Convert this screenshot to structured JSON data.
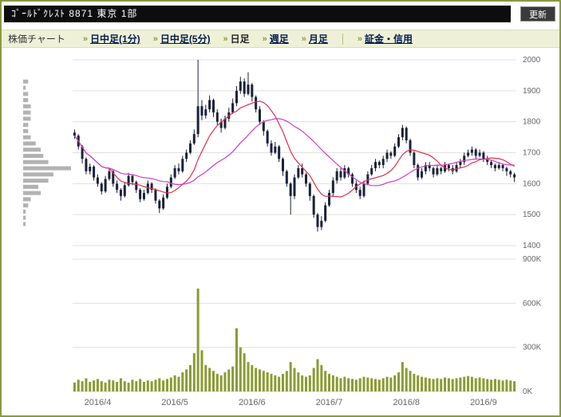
{
  "header": {
    "title": "ｺﾞｰﾙﾄﾞｸﾚｽﾄ 8871  東京 1部",
    "refresh_label": "更新"
  },
  "nav": {
    "label": "株価チャート",
    "arrow": "»",
    "items": [
      {
        "label": "日中足(1分)",
        "active": false
      },
      {
        "label": "日中足(5分)",
        "active": false
      },
      {
        "label": "日足",
        "active": true
      },
      {
        "label": "週足",
        "active": false
      },
      {
        "label": "月足",
        "active": false
      },
      {
        "label": "証金・信用",
        "active": false
      }
    ]
  },
  "chart_data": {
    "type": "candlestick+volume",
    "title": "",
    "xlabel": "",
    "ylabel": "",
    "grid": true,
    "legend": "none",
    "price_axis": {
      "side": "right",
      "min": 1400,
      "max": 2000,
      "ticks": [
        2000,
        1900,
        1800,
        1700,
        1600,
        1500,
        1400
      ]
    },
    "volume_axis": {
      "side": "right",
      "max_k": 900,
      "ticks": [
        {
          "value_k": 900,
          "label": "900K"
        },
        {
          "value_k": 600,
          "label": "600K"
        },
        {
          "value_k": 300,
          "label": "300K"
        },
        {
          "value_k": 0,
          "label": "0K"
        }
      ]
    },
    "months": [
      {
        "label": "2016/4",
        "start_index": 0
      },
      {
        "label": "2016/5",
        "start_index": 20
      },
      {
        "label": "2016/6",
        "start_index": 40
      },
      {
        "label": "2016/7",
        "start_index": 60
      },
      {
        "label": "2016/8",
        "start_index": 80
      },
      {
        "label": "2016/9",
        "start_index": 100
      }
    ],
    "candles": [
      [
        1765,
        1775,
        1745,
        1755
      ],
      [
        1755,
        1760,
        1710,
        1720
      ],
      [
        1720,
        1725,
        1665,
        1680
      ],
      [
        1680,
        1685,
        1630,
        1640
      ],
      [
        1640,
        1665,
        1630,
        1655
      ],
      [
        1655,
        1660,
        1610,
        1620
      ],
      [
        1620,
        1630,
        1590,
        1600
      ],
      [
        1600,
        1605,
        1565,
        1575
      ],
      [
        1575,
        1625,
        1570,
        1615
      ],
      [
        1615,
        1650,
        1610,
        1640
      ],
      [
        1640,
        1645,
        1590,
        1600
      ],
      [
        1600,
        1610,
        1570,
        1580
      ],
      [
        1580,
        1585,
        1545,
        1560
      ],
      [
        1560,
        1605,
        1555,
        1595
      ],
      [
        1595,
        1635,
        1590,
        1625
      ],
      [
        1625,
        1630,
        1595,
        1605
      ],
      [
        1605,
        1610,
        1570,
        1580
      ],
      [
        1580,
        1585,
        1540,
        1550
      ],
      [
        1550,
        1580,
        1545,
        1570
      ],
      [
        1570,
        1610,
        1565,
        1600
      ],
      [
        1600,
        1605,
        1570,
        1580
      ],
      [
        1580,
        1585,
        1535,
        1545
      ],
      [
        1545,
        1550,
        1505,
        1520
      ],
      [
        1520,
        1565,
        1515,
        1555
      ],
      [
        1555,
        1600,
        1550,
        1590
      ],
      [
        1590,
        1630,
        1585,
        1620
      ],
      [
        1620,
        1660,
        1615,
        1650
      ],
      [
        1650,
        1665,
        1630,
        1640
      ],
      [
        1640,
        1690,
        1635,
        1680
      ],
      [
        1680,
        1710,
        1670,
        1700
      ],
      [
        1700,
        1740,
        1695,
        1730
      ],
      [
        1730,
        1775,
        1725,
        1760
      ],
      [
        1760,
        2000,
        1750,
        1850
      ],
      [
        1850,
        1870,
        1805,
        1820
      ],
      [
        1820,
        1855,
        1810,
        1840
      ],
      [
        1840,
        1885,
        1830,
        1870
      ],
      [
        1870,
        1875,
        1815,
        1830
      ],
      [
        1830,
        1840,
        1790,
        1800
      ],
      [
        1800,
        1810,
        1765,
        1780
      ],
      [
        1780,
        1820,
        1775,
        1810
      ],
      [
        1810,
        1845,
        1800,
        1830
      ],
      [
        1830,
        1875,
        1825,
        1860
      ],
      [
        1860,
        1915,
        1850,
        1900
      ],
      [
        1900,
        1945,
        1890,
        1930
      ],
      [
        1930,
        1940,
        1880,
        1890
      ],
      [
        1890,
        1960,
        1885,
        1920
      ],
      [
        1920,
        1925,
        1865,
        1880
      ],
      [
        1880,
        1885,
        1830,
        1840
      ],
      [
        1840,
        1850,
        1790,
        1800
      ],
      [
        1800,
        1805,
        1755,
        1770
      ],
      [
        1770,
        1775,
        1720,
        1730
      ],
      [
        1730,
        1740,
        1690,
        1700
      ],
      [
        1700,
        1735,
        1695,
        1720
      ],
      [
        1720,
        1725,
        1670,
        1680
      ],
      [
        1680,
        1685,
        1625,
        1640
      ],
      [
        1640,
        1645,
        1590,
        1600
      ],
      [
        1600,
        1605,
        1500,
        1560
      ],
      [
        1560,
        1630,
        1550,
        1620
      ],
      [
        1620,
        1660,
        1615,
        1650
      ],
      [
        1650,
        1665,
        1620,
        1630
      ],
      [
        1630,
        1635,
        1590,
        1600
      ],
      [
        1600,
        1605,
        1545,
        1560
      ],
      [
        1560,
        1565,
        1490,
        1500
      ],
      [
        1500,
        1505,
        1445,
        1460
      ],
      [
        1460,
        1495,
        1450,
        1480
      ],
      [
        1480,
        1540,
        1475,
        1530
      ],
      [
        1530,
        1580,
        1525,
        1570
      ],
      [
        1570,
        1620,
        1560,
        1610
      ],
      [
        1610,
        1650,
        1600,
        1640
      ],
      [
        1640,
        1650,
        1610,
        1620
      ],
      [
        1620,
        1660,
        1615,
        1650
      ],
      [
        1650,
        1655,
        1620,
        1630
      ],
      [
        1630,
        1635,
        1590,
        1600
      ],
      [
        1600,
        1610,
        1570,
        1580
      ],
      [
        1580,
        1590,
        1550,
        1560
      ],
      [
        1560,
        1610,
        1555,
        1600
      ],
      [
        1600,
        1640,
        1595,
        1630
      ],
      [
        1630,
        1660,
        1625,
        1650
      ],
      [
        1650,
        1680,
        1640,
        1670
      ],
      [
        1670,
        1675,
        1650,
        1660
      ],
      [
        1660,
        1690,
        1650,
        1680
      ],
      [
        1680,
        1710,
        1670,
        1700
      ],
      [
        1700,
        1705,
        1680,
        1690
      ],
      [
        1690,
        1730,
        1685,
        1720
      ],
      [
        1720,
        1760,
        1715,
        1750
      ],
      [
        1750,
        1790,
        1740,
        1780
      ],
      [
        1780,
        1785,
        1730,
        1740
      ],
      [
        1740,
        1745,
        1690,
        1700
      ],
      [
        1700,
        1705,
        1650,
        1660
      ],
      [
        1660,
        1665,
        1610,
        1620
      ],
      [
        1620,
        1650,
        1615,
        1640
      ],
      [
        1640,
        1670,
        1630,
        1660
      ],
      [
        1660,
        1670,
        1640,
        1650
      ],
      [
        1650,
        1655,
        1620,
        1630
      ],
      [
        1630,
        1660,
        1625,
        1650
      ],
      [
        1650,
        1655,
        1630,
        1640
      ],
      [
        1640,
        1670,
        1635,
        1660
      ],
      [
        1660,
        1665,
        1640,
        1650
      ],
      [
        1650,
        1660,
        1630,
        1640
      ],
      [
        1640,
        1670,
        1635,
        1660
      ],
      [
        1660,
        1680,
        1650,
        1670
      ],
      [
        1670,
        1700,
        1660,
        1690
      ],
      [
        1690,
        1710,
        1685,
        1700
      ],
      [
        1700,
        1720,
        1690,
        1710
      ],
      [
        1710,
        1715,
        1680,
        1690
      ],
      [
        1690,
        1710,
        1685,
        1700
      ],
      [
        1700,
        1705,
        1670,
        1680
      ],
      [
        1680,
        1690,
        1660,
        1670
      ],
      [
        1670,
        1675,
        1650,
        1660
      ],
      [
        1660,
        1665,
        1640,
        1650
      ],
      [
        1650,
        1670,
        1645,
        1660
      ],
      [
        1660,
        1665,
        1640,
        1650
      ],
      [
        1650,
        1655,
        1625,
        1640
      ],
      [
        1640,
        1645,
        1620,
        1630
      ],
      [
        1630,
        1635,
        1605,
        1620
      ]
    ],
    "volumes_k": [
      60,
      80,
      70,
      90,
      65,
      75,
      85,
      70,
      60,
      80,
      75,
      65,
      90,
      70,
      60,
      80,
      70,
      85,
      65,
      75,
      70,
      80,
      90,
      75,
      85,
      95,
      110,
      100,
      130,
      150,
      180,
      260,
      700,
      280,
      180,
      160,
      140,
      120,
      110,
      130,
      150,
      170,
      430,
      300,
      260,
      200,
      180,
      160,
      150,
      140,
      130,
      120,
      110,
      100,
      120,
      140,
      200,
      160,
      130,
      110,
      100,
      110,
      160,
      220,
      180,
      140,
      120,
      110,
      100,
      90,
      100,
      90,
      85,
      80,
      90,
      100,
      95,
      90,
      85,
      80,
      90,
      100,
      95,
      110,
      130,
      200,
      160,
      140,
      120,
      110,
      100,
      95,
      90,
      85,
      90,
      85,
      95,
      90,
      85,
      90,
      95,
      100,
      105,
      100,
      90,
      95,
      90,
      85,
      80,
      85,
      80,
      75,
      80,
      75,
      70
    ],
    "moving_averages": [
      {
        "name": "ma-short",
        "window": 10,
        "color": "#e0304f"
      },
      {
        "name": "ma-long",
        "window": 25,
        "color": "#cc3fcc"
      }
    ],
    "colors": {
      "candle": "#1a2238",
      "volume": "#8b9b33",
      "profile": "#b2b2b2",
      "grid": "#e0e0e0",
      "axis_text": "#666666",
      "frame": "#8a9a44"
    }
  }
}
